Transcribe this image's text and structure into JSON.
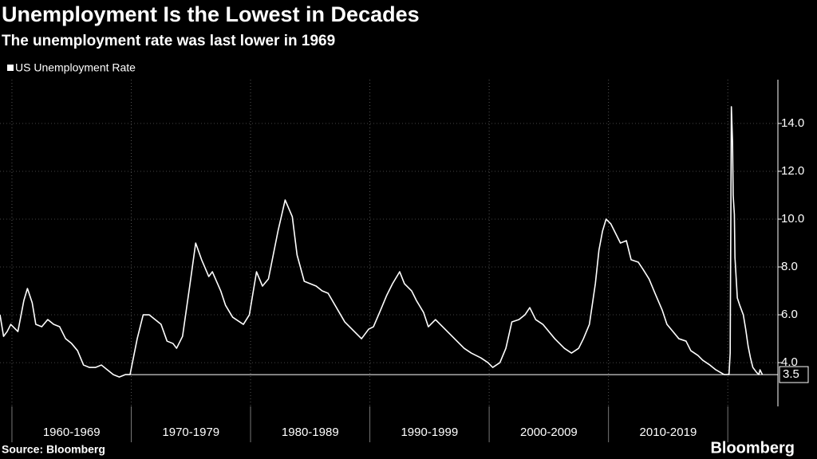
{
  "chart_data": {
    "type": "line",
    "title": "Unemployment Is the Lowest in Decades",
    "subtitle": "The unemployment rate was last lower in 1969",
    "source": "Source: Bloomberg",
    "logo": "Bloomberg",
    "x_categories": [
      "1960-1969",
      "1970-1979",
      "1980-1989",
      "1990-1999",
      "2000-2009",
      "2010-2019"
    ],
    "xticks": [
      1960,
      1970,
      1980,
      1990,
      2000,
      2010,
      2020
    ],
    "xlim": [
      1959.0,
      2024.2
    ],
    "ylim": [
      2.17,
      15.83
    ],
    "yticks": [
      {
        "value": 4,
        "label": "4.0"
      },
      {
        "value": 6,
        "label": "6.0"
      },
      {
        "value": 8,
        "label": "8.0"
      },
      {
        "value": 10,
        "label": "10.0"
      },
      {
        "value": 12,
        "label": "12.0"
      },
      {
        "value": 14,
        "label": "14.0"
      }
    ],
    "grid": true,
    "reference_line": {
      "value": 3.5,
      "x_start": 1969.9
    },
    "series": [
      {
        "name": "US Unemployment Rate",
        "color": "#ffffff",
        "x": [
          1959.0,
          1959.3,
          1959.6,
          1959.9,
          1960.5,
          1961.0,
          1961.3,
          1961.7,
          1962.0,
          1962.5,
          1963.0,
          1963.5,
          1964.0,
          1964.5,
          1965.0,
          1965.5,
          1966.0,
          1966.5,
          1967.0,
          1967.5,
          1968.0,
          1968.5,
          1969.0,
          1969.5,
          1969.9,
          1970.5,
          1971.0,
          1971.5,
          1972.0,
          1972.5,
          1973.0,
          1973.5,
          1973.8,
          1974.3,
          1974.9,
          1975.4,
          1975.9,
          1976.5,
          1976.8,
          1977.5,
          1977.9,
          1978.5,
          1979.4,
          1979.9,
          1980.5,
          1981.0,
          1981.5,
          1981.9,
          1982.3,
          1982.9,
          1983.5,
          1983.9,
          1984.5,
          1985.0,
          1985.5,
          1986.0,
          1986.5,
          1987.2,
          1987.9,
          1988.5,
          1989.3,
          1989.9,
          1990.3,
          1990.9,
          1991.4,
          1991.9,
          1992.5,
          1992.9,
          1993.5,
          1993.9,
          1994.5,
          1994.9,
          1995.5,
          1995.9,
          1996.5,
          1997.3,
          1997.9,
          1998.5,
          1999.3,
          1999.9,
          2000.3,
          2000.9,
          2001.4,
          2001.9,
          2002.5,
          2003.0,
          2003.4,
          2003.9,
          2004.5,
          2005.0,
          2005.5,
          2006.3,
          2006.9,
          2007.5,
          2007.9,
          2008.4,
          2008.9,
          2009.2,
          2009.5,
          2009.8,
          2010.2,
          2010.6,
          2011.0,
          2011.5,
          2011.9,
          2012.5,
          2012.9,
          2013.4,
          2013.9,
          2014.5,
          2014.9,
          2015.4,
          2015.9,
          2016.5,
          2016.9,
          2017.5,
          2017.9,
          2018.5,
          2019.0,
          2019.7,
          2020.1,
          2020.2,
          2020.3,
          2020.4,
          2020.45,
          2020.55,
          2020.6,
          2020.8,
          2021.0,
          2021.3,
          2021.5,
          2021.7,
          2021.9,
          2022.1,
          2022.4,
          2022.6,
          2022.7,
          2022.8,
          2022.9
        ],
        "values": [
          6.0,
          5.1,
          5.3,
          5.6,
          5.3,
          6.6,
          7.1,
          6.5,
          5.6,
          5.5,
          5.8,
          5.6,
          5.5,
          5.0,
          4.8,
          4.5,
          3.9,
          3.8,
          3.8,
          3.9,
          3.7,
          3.5,
          3.4,
          3.5,
          3.5,
          5.0,
          6.0,
          6.0,
          5.8,
          5.6,
          4.9,
          4.8,
          4.6,
          5.1,
          7.2,
          9.0,
          8.3,
          7.6,
          7.8,
          7.0,
          6.4,
          5.9,
          5.6,
          6.0,
          7.8,
          7.2,
          7.5,
          8.5,
          9.5,
          10.8,
          10.1,
          8.5,
          7.4,
          7.3,
          7.2,
          7.0,
          6.9,
          6.3,
          5.7,
          5.4,
          5.0,
          5.4,
          5.5,
          6.2,
          6.8,
          7.3,
          7.8,
          7.3,
          7.0,
          6.6,
          6.1,
          5.5,
          5.8,
          5.6,
          5.3,
          4.9,
          4.6,
          4.4,
          4.2,
          4.0,
          3.8,
          4.0,
          4.6,
          5.7,
          5.8,
          6.0,
          6.3,
          5.8,
          5.6,
          5.3,
          5.0,
          4.6,
          4.4,
          4.6,
          5.0,
          5.6,
          7.3,
          8.7,
          9.5,
          10.0,
          9.8,
          9.4,
          9.0,
          9.1,
          8.3,
          8.2,
          7.9,
          7.5,
          6.9,
          6.2,
          5.6,
          5.3,
          5.0,
          4.9,
          4.5,
          4.3,
          4.1,
          3.9,
          3.7,
          3.5,
          3.5,
          4.4,
          14.7,
          13.2,
          11.0,
          10.2,
          8.4,
          6.7,
          6.4,
          6.0,
          5.4,
          4.7,
          4.2,
          3.8,
          3.6,
          3.5,
          3.7,
          3.6,
          3.5
        ]
      }
    ]
  }
}
